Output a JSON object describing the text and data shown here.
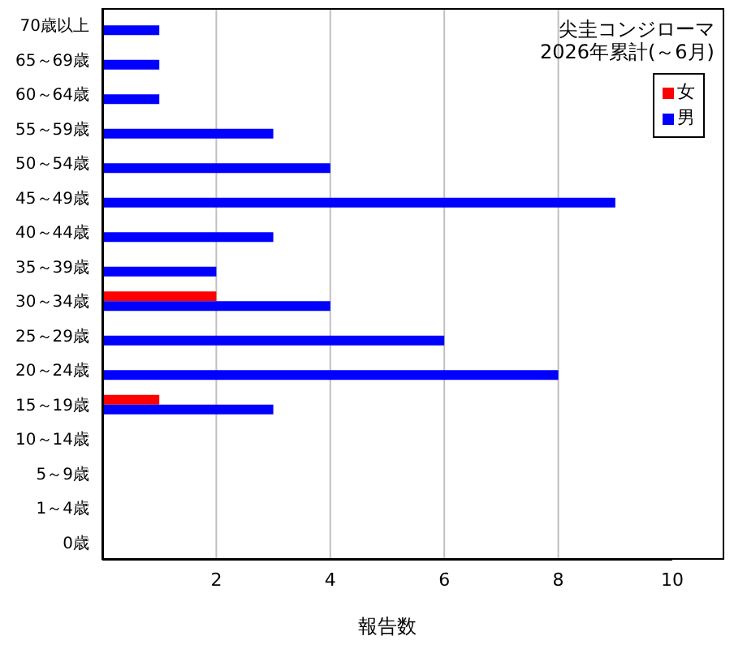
{
  "chart_data": {
    "type": "bar",
    "orientation": "horizontal",
    "title": "尖圭コンジローマ",
    "subtitle": "2026年累計(～6月)",
    "xlabel": "報告数",
    "categories": [
      "70歳以上",
      "65～69歳",
      "60～64歳",
      "55～59歳",
      "50～54歳",
      "45～49歳",
      "40～44歳",
      "35～39歳",
      "30～34歳",
      "25～29歳",
      "20～24歳",
      "15～19歳",
      "10～14歳",
      "5～9歳",
      "1～4歳",
      "0歳"
    ],
    "series": [
      {
        "name": "女",
        "color": "#ff0000",
        "values": [
          0,
          0,
          0,
          0,
          0,
          0,
          0,
          0,
          2,
          0,
          0,
          1,
          0,
          0,
          0,
          0
        ]
      },
      {
        "name": "男",
        "color": "#0000ff",
        "values": [
          1,
          1,
          1,
          3,
          4,
          9,
          3,
          2,
          4,
          6,
          8,
          3,
          0,
          0,
          0,
          0
        ]
      }
    ],
    "xlim": [
      0,
      10
    ],
    "xticks": [
      {
        "value": 0,
        "label": null
      },
      2,
      4,
      6,
      8,
      10
    ],
    "grid": "x",
    "legend": "top right"
  }
}
